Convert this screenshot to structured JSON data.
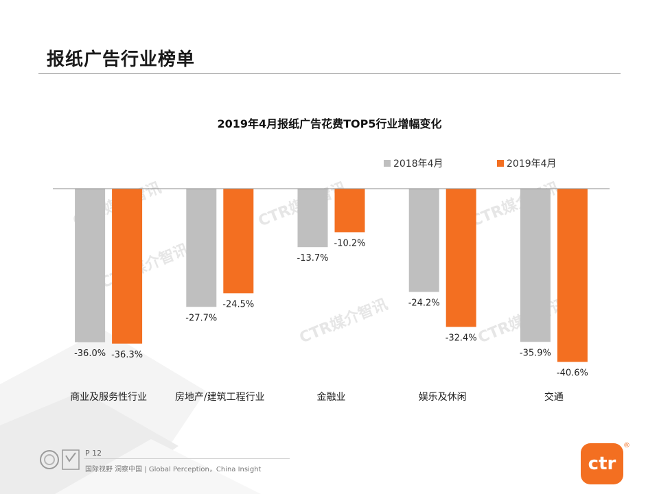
{
  "page": {
    "title": "报纸广告行业榜单"
  },
  "chart_data": {
    "type": "bar",
    "title": "2019年4月报纸广告花费TOP5行业增幅变化",
    "categories": [
      "商业及服务性行业",
      "房地产/建筑工程行业",
      "金融业",
      "娱乐及休闲",
      "交通"
    ],
    "series": [
      {
        "name": "2018年4月",
        "color": "#bfbfbf",
        "values": [
          -36.0,
          -27.7,
          -13.7,
          -24.2,
          -35.9
        ],
        "labels": [
          "-36.0%",
          "-27.7%",
          "-13.7%",
          "-24.2%",
          "-35.9%"
        ]
      },
      {
        "name": "2019年4月",
        "color": "#f36f21",
        "values": [
          -36.3,
          -24.5,
          -10.2,
          -32.4,
          -40.6
        ],
        "labels": [
          "-36.3%",
          "-24.5%",
          "-10.2%",
          "-32.4%",
          "-40.6%"
        ]
      }
    ],
    "ylim": [
      -41,
      0
    ],
    "unit": "%",
    "legend": "top-right",
    "grid": false,
    "watermark": "CTR媒介智讯"
  },
  "footer": {
    "page_number": "P 12",
    "tagline": "国际视野 洞察中国 | Global Perception，China Insight"
  },
  "brand": {
    "logo_text": "ctr",
    "registered": "®",
    "color": "#f36f21"
  }
}
